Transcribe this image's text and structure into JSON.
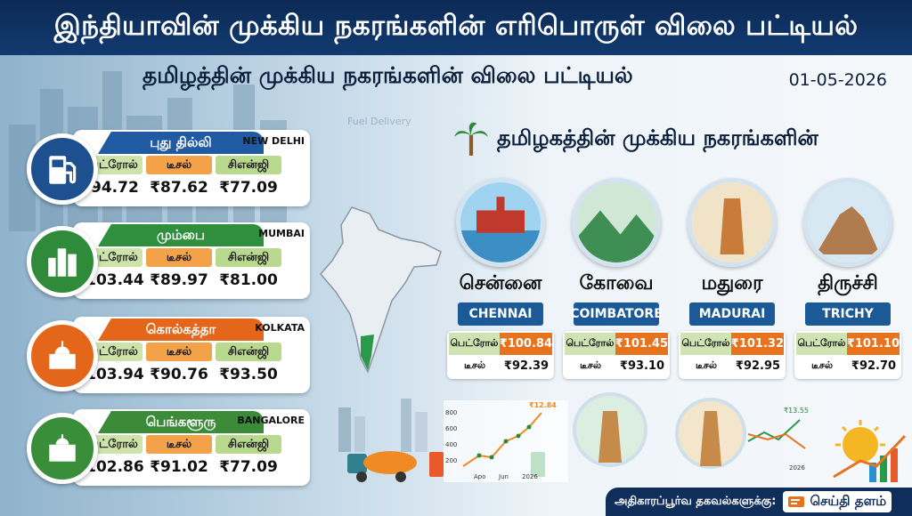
{
  "header": {
    "title": "இந்தியாவின் முக்கிய நகரங்களின் எரிபொருள் விலை பட்டியல்"
  },
  "subheader": {
    "title": "தமிழத்தின் முக்கிய நகரங்களின் விலை பட்டியல்",
    "date": "01-05-2026"
  },
  "fuel_labels": {
    "petrol": "பெட்ரோல்",
    "diesel": "டீசல்",
    "cng": "சிஎன்ஜி"
  },
  "metro_cities": [
    {
      "name_ta": "புது தில்லி",
      "name_en": "NEW DELHI",
      "icon": "fuel-pump-icon",
      "accent": "#1f5aa3",
      "petrol": "₹94.72",
      "diesel": "₹87.62",
      "cng": "₹77.09"
    },
    {
      "name_ta": "மும்பை",
      "name_en": "MUMBAI",
      "icon": "skyscraper-icon",
      "accent": "#2f8f3c",
      "petrol": "₹103.44",
      "diesel": "₹89.97",
      "cng": "₹81.00"
    },
    {
      "name_ta": "கொல்கத்தா",
      "name_en": "KOLKATA",
      "icon": "victoria-memorial-icon",
      "accent": "#e4661b",
      "petrol": "₹103.94",
      "diesel": "₹90.76",
      "cng": "₹93.50"
    },
    {
      "name_ta": "பெங்களூரு",
      "name_en": "BANGALORE",
      "icon": "vidhana-soudha-icon",
      "accent": "#3c8b38",
      "petrol": "₹102.86",
      "diesel": "₹91.02",
      "cng": "₹77.09"
    }
  ],
  "tamilnadu": {
    "title": "தமிழகத்தின் முக்கிய நகரங்களின்",
    "cities": [
      {
        "name_ta": "சென்னை",
        "name_en": "CHENNAI",
        "petrol": "₹100.84",
        "diesel": "₹92.39"
      },
      {
        "name_ta": "கோவை",
        "name_en": "COIMBATORE",
        "petrol": "₹101.45",
        "diesel": "₹93.10"
      },
      {
        "name_ta": "மதுரை",
        "name_en": "MADURAI",
        "petrol": "₹101.32",
        "diesel": "₹92.95"
      },
      {
        "name_ta": "திருச்சி",
        "name_en": "TRICHY",
        "petrol": "₹101.10",
        "diesel": "₹92.70"
      }
    ]
  },
  "decor": {
    "chart1": {
      "peak_label": "₹12.84",
      "y_ticks": [
        "800",
        "600",
        "400",
        "200"
      ],
      "x_ticks": [
        "Apo",
        "Jun",
        "2026"
      ]
    },
    "chart2": {
      "peak_label": "₹13.55",
      "x_tick": "2026"
    },
    "truck_sign": "Fuel Delivery"
  },
  "footer": {
    "text": "அதிகாரப்பூர்வ தகவல்களுக்கு:",
    "brand": "செய்தி தளம்"
  }
}
